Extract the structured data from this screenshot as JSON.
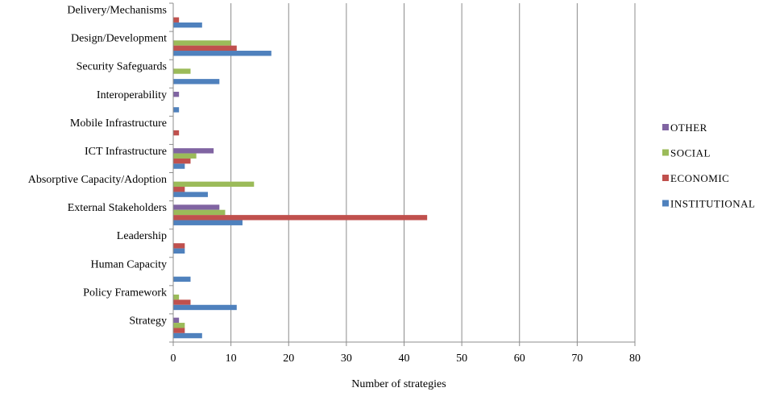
{
  "chart_data": {
    "type": "bar",
    "orientation": "horizontal",
    "categories": [
      "Delivery/Mechanisms",
      "Design/Development",
      "Security Safeguards",
      "Interoperability",
      "Mobile Infrastructure",
      "ICT Infrastructure",
      "Absorptive Capacity/Adoption",
      "External Stakeholders",
      "Leadership",
      "Human Capacity",
      "Policy Framework",
      "Strategy"
    ],
    "series": [
      {
        "name": "OTHER",
        "color": "#8064A2",
        "values": [
          0,
          0,
          0,
          1,
          0,
          7,
          0,
          8,
          0,
          0,
          0,
          1
        ]
      },
      {
        "name": "SOCIAL",
        "color": "#9BBB59",
        "values": [
          0,
          10,
          3,
          0,
          0,
          4,
          14,
          9,
          0,
          0,
          1,
          2
        ]
      },
      {
        "name": "ECONOMIC",
        "color": "#C0504D",
        "values": [
          1,
          11,
          0,
          0,
          1,
          3,
          2,
          44,
          2,
          0,
          3,
          2
        ]
      },
      {
        "name": "INSTITUTIONAL",
        "color": "#4F81BD",
        "values": [
          5,
          17,
          8,
          1,
          0,
          2,
          6,
          12,
          2,
          3,
          11,
          5
        ]
      }
    ],
    "title": "",
    "xlabel": "Number of strategies",
    "ylabel": "",
    "xlim": [
      0,
      80
    ],
    "xticks": [
      0,
      10,
      20,
      30,
      40,
      50,
      60,
      70,
      80
    ],
    "grid": true,
    "legend_position": "right"
  }
}
